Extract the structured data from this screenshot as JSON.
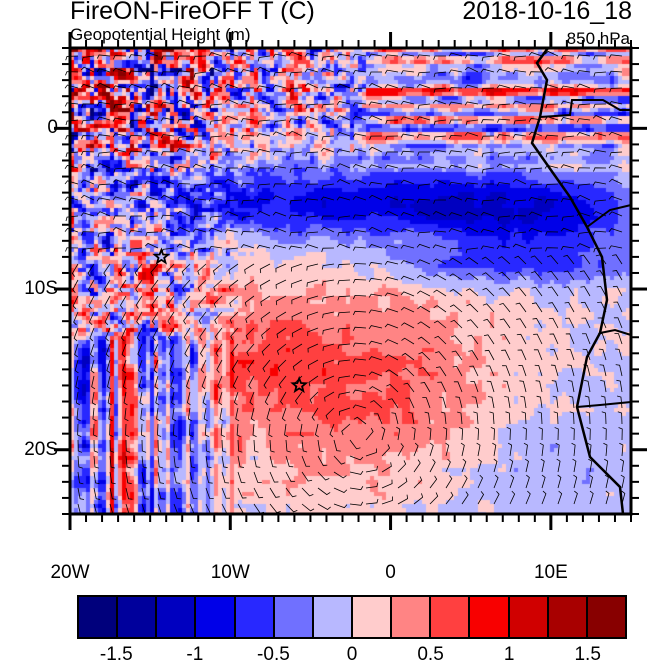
{
  "header": {
    "title": "FireON-FireOFF T (C)",
    "date": "2018-10-16_18",
    "subtitle": "Geopotential Height (m)",
    "level": "850 hPa"
  },
  "map": {
    "lon_range": [
      -20,
      15
    ],
    "lat_range": [
      -24,
      5
    ],
    "x_ticks": [
      {
        "lon": -20,
        "label": "20W"
      },
      {
        "lon": -10,
        "label": "10W"
      },
      {
        "lon": 0,
        "label": "0"
      },
      {
        "lon": 10,
        "label": "10E"
      }
    ],
    "y_ticks": [
      {
        "lat": 0,
        "label": "0"
      },
      {
        "lat": -10,
        "label": "10S"
      },
      {
        "lat": -20,
        "label": "20S"
      }
    ],
    "markers": [
      {
        "type": "star",
        "lon": -14.3,
        "lat": -8
      },
      {
        "type": "star",
        "lon": -5.7,
        "lat": -16
      }
    ]
  },
  "colorbar": {
    "levels": [
      -1.5,
      -1.25,
      -1,
      -0.75,
      -0.5,
      -0.25,
      0,
      0.25,
      0.5,
      0.75,
      1,
      1.25,
      1.5
    ],
    "colors": [
      "#00007c",
      "#00009c",
      "#0000c0",
      "#0000e8",
      "#2828ff",
      "#7070ff",
      "#b8b8ff",
      "#ffcccc",
      "#ff8484",
      "#ff4040",
      "#f80000",
      "#d00000",
      "#a80000",
      "#880000"
    ],
    "labels": [
      {
        "value": -1.5,
        "label": "-1.5"
      },
      {
        "value": -1,
        "label": "-1"
      },
      {
        "value": -0.5,
        "label": "-0.5"
      },
      {
        "value": 0,
        "label": "0"
      },
      {
        "value": 0.5,
        "label": "0.5"
      },
      {
        "value": 1,
        "label": "1"
      },
      {
        "value": 1.5,
        "label": "1.5"
      }
    ]
  }
}
